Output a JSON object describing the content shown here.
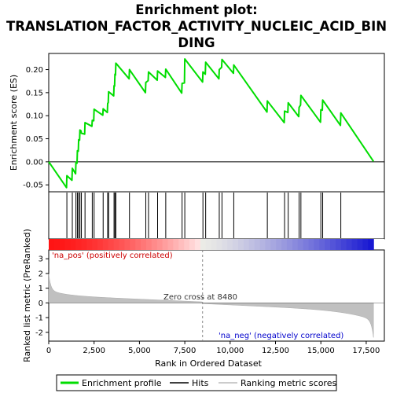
{
  "chart_data": {
    "type": "line",
    "title_lines": [
      "Enrichment plot:",
      "TRANSLATION_FACTOR_ACTIVITY_NUCLEIC_ACID_BIN",
      "DING"
    ],
    "es_panel": {
      "ylabel": "Enrichment score (ES)",
      "ylim": [
        -0.065,
        0.235
      ],
      "yticks": [
        -0.05,
        0.0,
        0.05,
        0.1,
        0.15,
        0.2
      ],
      "ytick_labels": [
        "-0.05",
        "0.00",
        "0.05",
        "0.10",
        "0.15",
        "0.20"
      ],
      "grid": false
    },
    "rank_panel": {
      "ylabel": "Ranked list metric (PreRanked)",
      "xlabel": "Rank in Ordered Dataset",
      "ylim": [
        -2.6,
        3.6
      ],
      "yticks": [
        -2,
        -1,
        0,
        1,
        2,
        3
      ],
      "ytick_labels": [
        "-2",
        "-1",
        "0",
        "1",
        "2",
        "3"
      ],
      "zero_cross_label": "Zero cross at 8480",
      "zero_cross": 8480,
      "pos_label": "'na_pos' (positively correlated)",
      "neg_label": "'na_neg' (negatively correlated)",
      "pos_color": "#cc0000",
      "neg_color": "#0000cc"
    },
    "xlim": [
      0,
      18500
    ],
    "xticks": [
      0,
      2500,
      5000,
      7500,
      10000,
      12500,
      15000,
      17500
    ],
    "xtick_labels": [
      "0",
      "2,500",
      "5,000",
      "7,500",
      "10,000",
      "12,500",
      "15,000",
      "17,500"
    ],
    "n_genes": 17900,
    "hits": [
      1000,
      1300,
      1500,
      1580,
      1650,
      1720,
      1800,
      2000,
      2400,
      2500,
      3000,
      3250,
      3300,
      3600,
      3650,
      3700,
      4450,
      5350,
      5500,
      6000,
      6450,
      7350,
      7500,
      8500,
      8650,
      9400,
      9550,
      10200,
      12050,
      13000,
      13200,
      13800,
      13900,
      15000,
      15100,
      16100
    ],
    "series": [
      {
        "name": "Enrichment profile",
        "color": "#00dd00",
        "x": [
          0,
          980,
          1000,
          1280,
          1300,
          1480,
          1500,
          1560,
          1580,
          1630,
          1650,
          1700,
          1720,
          1780,
          1800,
          1980,
          2000,
          2380,
          2400,
          2480,
          2500,
          2980,
          3000,
          3230,
          3250,
          3280,
          3300,
          3580,
          3600,
          3630,
          3650,
          3680,
          3700,
          4430,
          4450,
          5330,
          5350,
          5480,
          5500,
          5980,
          6000,
          6430,
          6450,
          7330,
          7350,
          7480,
          7500,
          8480,
          8500,
          8630,
          8650,
          9380,
          9400,
          9530,
          9550,
          10180,
          10200,
          12030,
          12050,
          12980,
          13000,
          13180,
          13200,
          13780,
          13800,
          13880,
          13900,
          14980,
          15000,
          15080,
          15100,
          16080,
          16100,
          17900
        ],
        "y": [
          0.0,
          -0.056,
          -0.03,
          -0.04,
          -0.014,
          -0.026,
          -0.001,
          -0.003,
          0.024,
          0.023,
          0.048,
          0.047,
          0.069,
          0.067,
          0.062,
          0.06,
          0.085,
          0.077,
          0.09,
          0.089,
          0.114,
          0.101,
          0.115,
          0.107,
          0.127,
          0.128,
          0.152,
          0.143,
          0.165,
          0.164,
          0.19,
          0.188,
          0.214,
          0.18,
          0.2,
          0.15,
          0.172,
          0.176,
          0.195,
          0.177,
          0.197,
          0.183,
          0.201,
          0.149,
          0.17,
          0.171,
          0.223,
          0.173,
          0.195,
          0.19,
          0.216,
          0.18,
          0.2,
          0.205,
          0.222,
          0.192,
          0.21,
          0.108,
          0.132,
          0.085,
          0.11,
          0.107,
          0.128,
          0.098,
          0.118,
          0.123,
          0.144,
          0.086,
          0.113,
          0.112,
          0.134,
          0.079,
          0.106,
          0.001
        ]
      }
    ],
    "legend": {
      "placement": "bottom",
      "entries": [
        {
          "label": "Enrichment profile",
          "color": "#00dd00"
        },
        {
          "label": "Hits",
          "color": "#000000"
        },
        {
          "label": "Ranking metric scores",
          "color": "#bbbbbb"
        }
      ]
    }
  }
}
